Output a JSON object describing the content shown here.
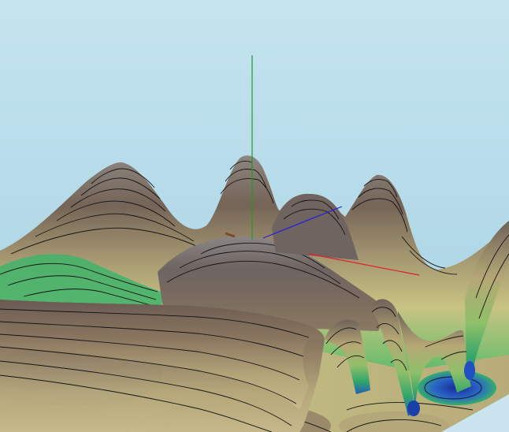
{
  "viewer": {
    "background_color": "#b8dcea",
    "colormap": [
      "#1c3fa8",
      "#2f8fd0",
      "#2fb86a",
      "#a9c65a",
      "#c9b98a",
      "#8f7a5e",
      "#6a5a52",
      "#9c9894"
    ],
    "contour_line_color": "#141414"
  },
  "axes": {
    "x": {
      "color": "#e0202a"
    },
    "y": {
      "color": "#1f9a2a"
    },
    "z": {
      "color": "#2020e0"
    }
  }
}
